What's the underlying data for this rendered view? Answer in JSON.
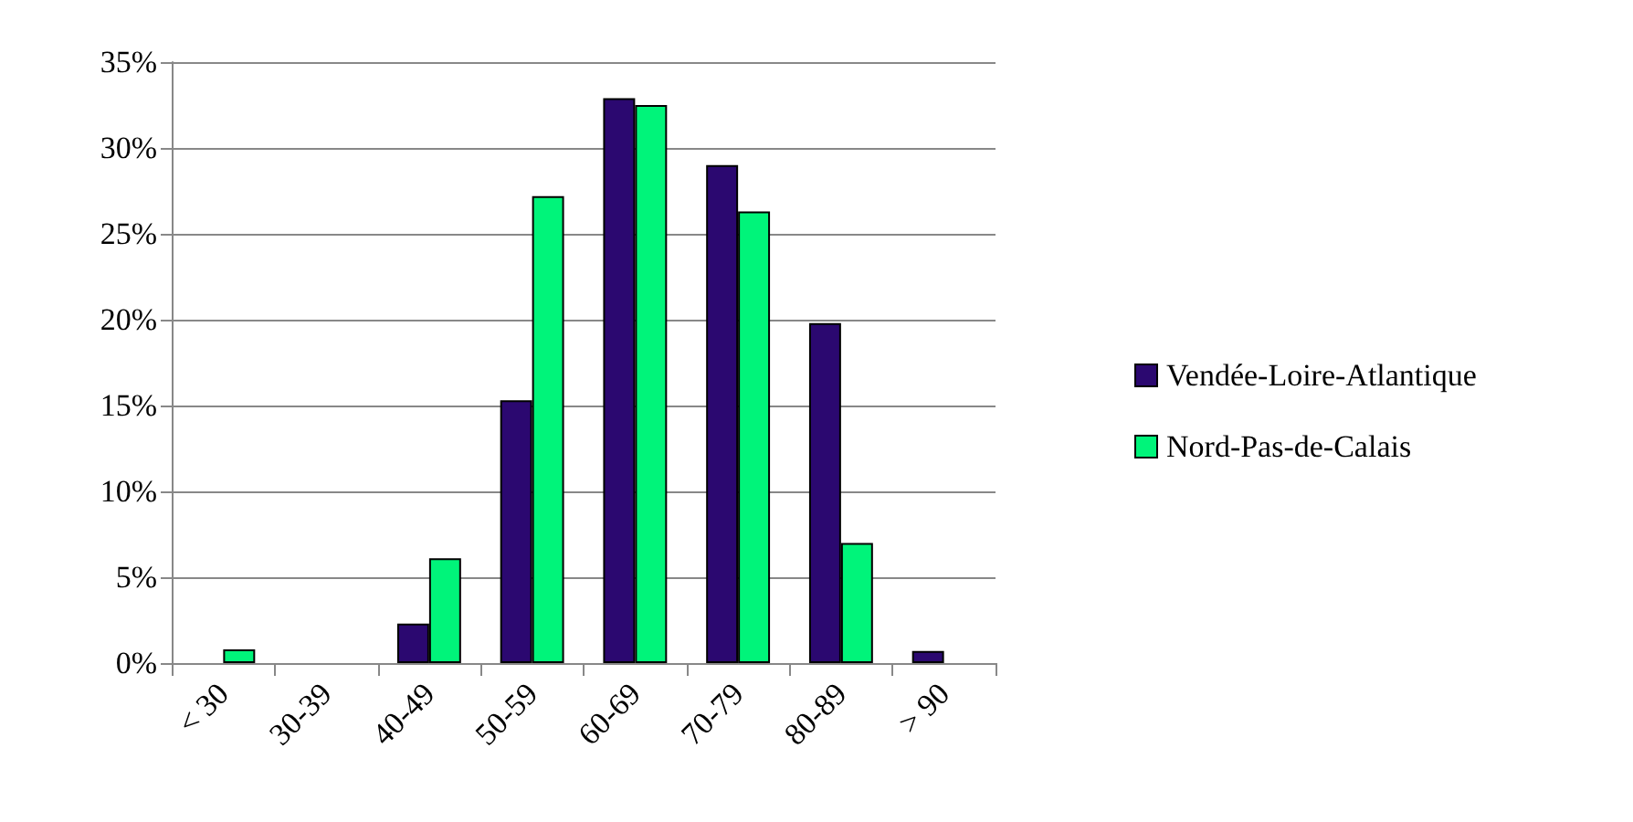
{
  "chart_data": {
    "type": "bar",
    "categories": [
      "< 30",
      "30-39",
      "40-49",
      "50-59",
      "60-69",
      "70-79",
      "80-89",
      "> 90"
    ],
    "series": [
      {
        "name": "Vendée-Loire-Atlantique",
        "color": "#2b0870",
        "values": [
          0,
          0,
          2.3,
          15.3,
          32.9,
          29.0,
          19.8,
          0.7
        ]
      },
      {
        "name": "Nord-Pas-de-Calais",
        "color": "#00f47a",
        "values": [
          0.8,
          0,
          6.1,
          27.2,
          32.5,
          26.3,
          7.0,
          0
        ]
      }
    ],
    "ylim": [
      0,
      35
    ],
    "yticks": [
      {
        "value": 0,
        "label": "0%"
      },
      {
        "value": 5,
        "label": "5%"
      },
      {
        "value": 10,
        "label": "10%"
      },
      {
        "value": 15,
        "label": "15%"
      },
      {
        "value": 20,
        "label": "20%"
      },
      {
        "value": 25,
        "label": "25%"
      },
      {
        "value": 30,
        "label": "30%"
      },
      {
        "value": 35,
        "label": "35%"
      }
    ],
    "grid": "y",
    "legend": "right"
  }
}
